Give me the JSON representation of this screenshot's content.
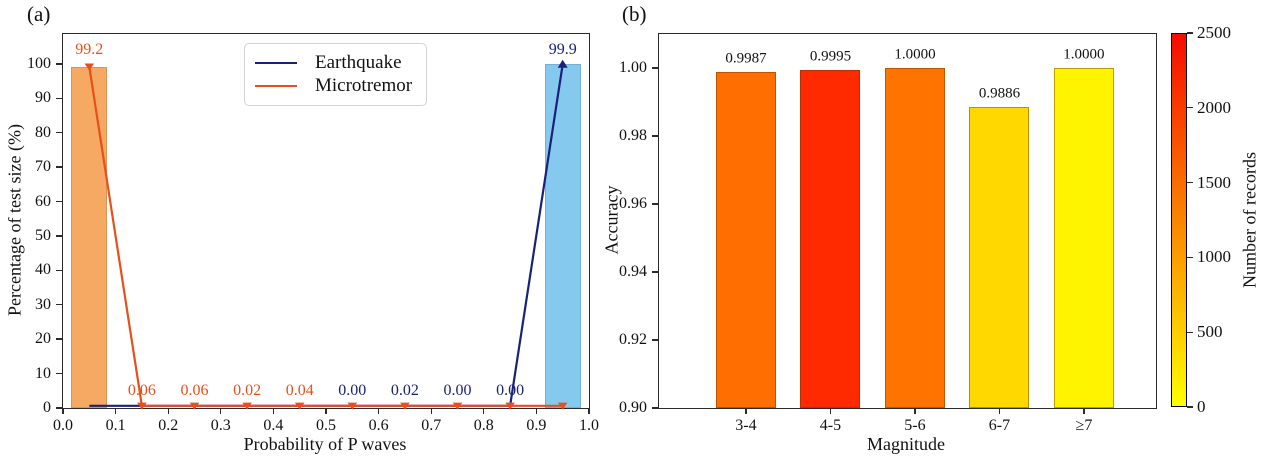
{
  "figure": {
    "panel_a_label": "(a)",
    "panel_b_label": "(b)"
  },
  "colors": {
    "earthquake_line": "#1a2178",
    "microtremor_line": "#e84f1a",
    "microtremor_bar": "#f5a963",
    "earthquake_bar": "#86c9ee",
    "axis": "#2b2b2b",
    "text": "#111111",
    "legend_border": "#d4d4d4"
  },
  "chart_data": [
    {
      "id": "a",
      "type": "bar+line",
      "xlabel": "Probability of P waves",
      "ylabel": "Percentage of test size (%)",
      "xlim": [
        0.0,
        1.0
      ],
      "ylim": [
        0,
        108.7
      ],
      "xtick_labels": [
        "0.0",
        "0.1",
        "0.2",
        "0.3",
        "0.4",
        "0.5",
        "0.6",
        "0.7",
        "0.8",
        "0.9",
        "1.0"
      ],
      "xtick_values": [
        0.0,
        0.1,
        0.2,
        0.3,
        0.4,
        0.5,
        0.6,
        0.7,
        0.8,
        0.9,
        1.0
      ],
      "ytick_labels": [
        "0",
        "10",
        "20",
        "30",
        "40",
        "50",
        "60",
        "70",
        "80",
        "90",
        "100"
      ],
      "ytick_values": [
        0,
        10,
        20,
        30,
        40,
        50,
        60,
        70,
        80,
        90,
        100
      ],
      "legend": [
        {
          "label": "Earthquake",
          "color": "#1a2178"
        },
        {
          "label": "Microtremor",
          "color": "#e84f1a"
        }
      ],
      "bars": [
        {
          "x": 0.05,
          "width": 0.068,
          "height": 99.2,
          "color": "#f5a963"
        },
        {
          "x": 0.95,
          "width": 0.068,
          "height": 99.9,
          "color": "#86c9ee"
        }
      ],
      "series": [
        {
          "name": "Earthquake",
          "color": "#1a2178",
          "marker": "triangle-up",
          "marker_indices": [
            9
          ],
          "points": [
            [
              0.05,
              0.0
            ],
            [
              0.15,
              0.0
            ],
            [
              0.25,
              0.0
            ],
            [
              0.35,
              0.0
            ],
            [
              0.45,
              0.0
            ],
            [
              0.55,
              0.0
            ],
            [
              0.65,
              0.02
            ],
            [
              0.75,
              0.0
            ],
            [
              0.85,
              0.0
            ],
            [
              0.95,
              99.9
            ]
          ]
        },
        {
          "name": "Microtremor",
          "color": "#e84f1a",
          "marker": "triangle-down",
          "marker_indices": [
            0,
            1,
            2,
            3,
            4,
            5,
            6,
            7,
            8,
            9
          ],
          "points": [
            [
              0.05,
              99.2
            ],
            [
              0.15,
              0.06
            ],
            [
              0.25,
              0.06
            ],
            [
              0.35,
              0.02
            ],
            [
              0.45,
              0.04
            ],
            [
              0.55,
              0.0
            ],
            [
              0.65,
              0.0
            ],
            [
              0.75,
              0.0
            ],
            [
              0.85,
              0.0
            ],
            [
              0.95,
              0.5
            ]
          ]
        }
      ],
      "annotations": [
        {
          "x": 0.05,
          "y": 104.0,
          "text": "99.2",
          "color": "#e84f1a"
        },
        {
          "x": 0.95,
          "y": 104.0,
          "text": "99.9",
          "color": "#1a2178"
        },
        {
          "x": 0.15,
          "y": 4.9,
          "text": "0.06",
          "color": "#e84f1a"
        },
        {
          "x": 0.25,
          "y": 4.9,
          "text": "0.06",
          "color": "#e84f1a"
        },
        {
          "x": 0.35,
          "y": 4.9,
          "text": "0.02",
          "color": "#e84f1a"
        },
        {
          "x": 0.45,
          "y": 4.9,
          "text": "0.04",
          "color": "#e84f1a"
        },
        {
          "x": 0.55,
          "y": 4.9,
          "text": "0.00",
          "color": "#1a2178"
        },
        {
          "x": 0.65,
          "y": 4.9,
          "text": "0.02",
          "color": "#1a2178"
        },
        {
          "x": 0.75,
          "y": 4.9,
          "text": "0.00",
          "color": "#1a2178"
        },
        {
          "x": 0.85,
          "y": 4.9,
          "text": "0.00",
          "color": "#1a2178"
        }
      ]
    },
    {
      "id": "b",
      "type": "bar",
      "xlabel": "Magnitude",
      "ylabel": "Accuracy",
      "categories": [
        "3-4",
        "4-5",
        "5-6",
        "6-7",
        "≥7"
      ],
      "values": [
        0.9987,
        0.9995,
        1.0,
        0.9886,
        1.0
      ],
      "value_labels": [
        "0.9987",
        "0.9995",
        "1.0000",
        "0.9886",
        "1.0000"
      ],
      "bar_colors": [
        "#ff6e00",
        "#ff2a00",
        "#ff7300",
        "#ffd800",
        "#fff400"
      ],
      "ylim": [
        0.9,
        1.01
      ],
      "ytick_labels": [
        "0.90",
        "0.92",
        "0.94",
        "0.96",
        "0.98",
        "1.00"
      ],
      "ytick_values": [
        0.9,
        0.92,
        0.94,
        0.96,
        0.98,
        1.0
      ],
      "colorbar": {
        "label": "Number of records",
        "min": 0,
        "max": 2500,
        "tick_values": [
          0,
          500,
          1000,
          1500,
          2000,
          2500
        ],
        "tick_labels": [
          "0",
          "500",
          "1000",
          "1500",
          "2000",
          "2500"
        ],
        "color_min": "#ffff00",
        "color_max": "#f60b00"
      }
    }
  ]
}
